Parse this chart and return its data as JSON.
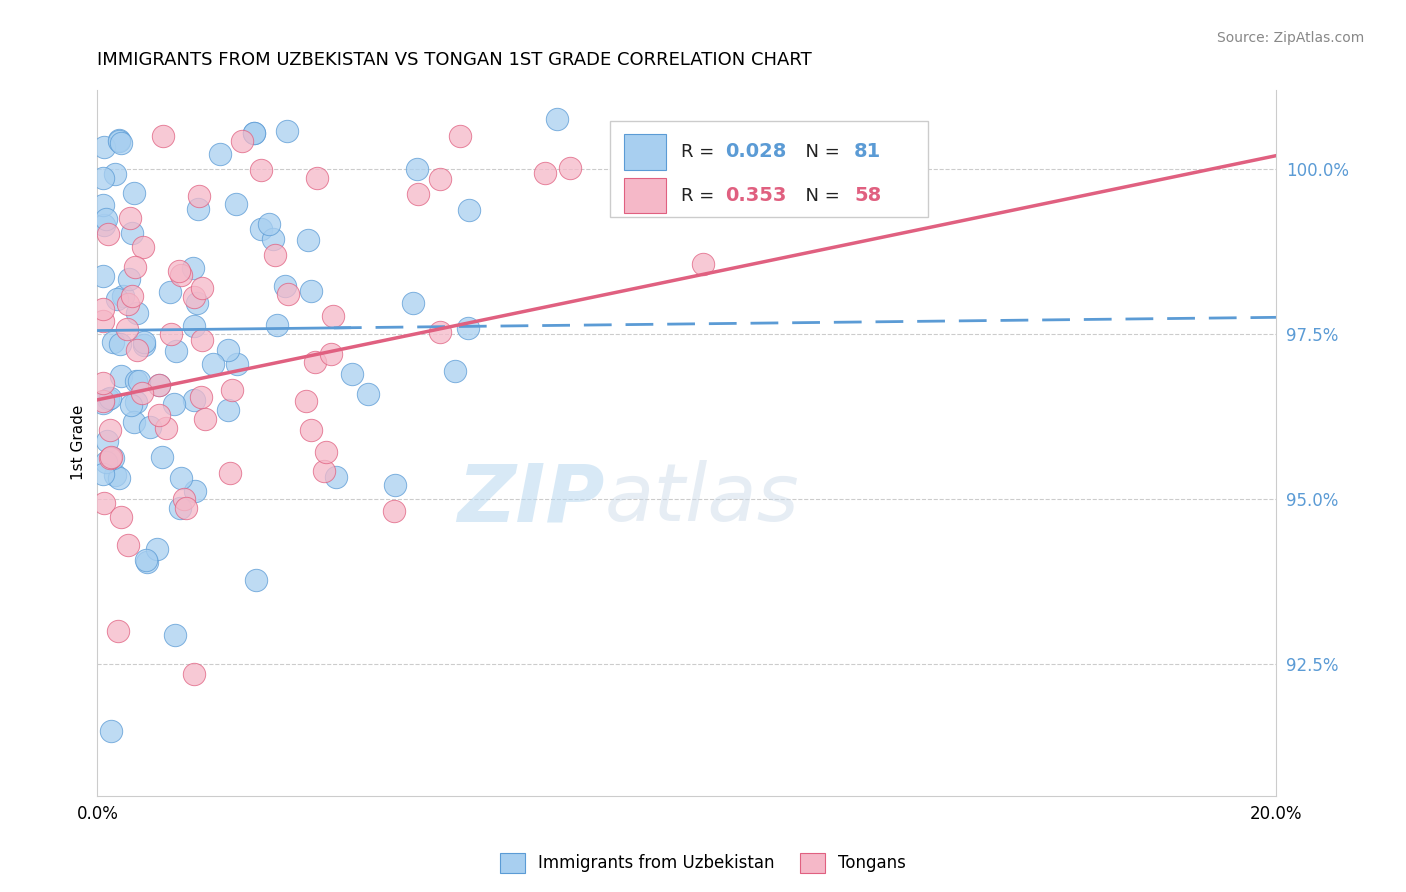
{
  "title": "IMMIGRANTS FROM UZBEKISTAN VS TONGAN 1ST GRADE CORRELATION CHART",
  "source": "Source: ZipAtlas.com",
  "ylabel": "1st Grade",
  "ytick_labels": [
    "92.5%",
    "95.0%",
    "97.5%",
    "100.0%"
  ],
  "ytick_values": [
    0.925,
    0.95,
    0.975,
    1.0
  ],
  "xlim": [
    0.0,
    0.2
  ],
  "ylim": [
    0.905,
    1.012
  ],
  "legend_r1": "0.028",
  "legend_n1": "81",
  "legend_r2": "0.353",
  "legend_n2": "58",
  "color_blue": "#A8CFF0",
  "color_pink": "#F5B8C8",
  "color_blue_line": "#5B9BD5",
  "color_pink_line": "#E06080",
  "watermark_zip": "ZIP",
  "watermark_atlas": "atlas",
  "seed_uzbek": 42,
  "seed_tongan": 99
}
